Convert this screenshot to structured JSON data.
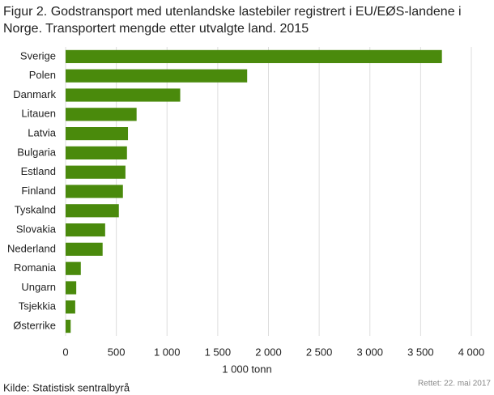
{
  "chart_data": {
    "type": "hbar",
    "title": "Figur 2. Godstransport med utenlandske lastebiler registrert i EU/EØS-landene i Norge. Transportert mengde etter utvalgte land. 2015",
    "categories": [
      "Sverige",
      "Polen",
      "Danmark",
      "Litauen",
      "Latvia",
      "Bulgaria",
      "Estland",
      "Finland",
      "Tyskalnd",
      "Slovakia",
      "Nederland",
      "Romania",
      "Ungarn",
      "Tsjekkia",
      "Østerrike"
    ],
    "values": [
      3710,
      1790,
      1130,
      700,
      615,
      605,
      590,
      565,
      525,
      390,
      365,
      150,
      105,
      95,
      50
    ],
    "color": "#4a8a0c",
    "xlabel": "1 000 tonn",
    "xlim": [
      0,
      4000
    ],
    "xticks": [
      0,
      500,
      {
        "value": 1000,
        "label": "1 000"
      },
      {
        "value": 1500,
        "label": "1 500"
      },
      {
        "value": 2000,
        "label": "2 000"
      },
      {
        "value": 2500,
        "label": "2 500"
      },
      {
        "value": 3000,
        "label": "3 000"
      },
      {
        "value": 3500,
        "label": "3 500"
      },
      {
        "value": 4000,
        "label": "4 000"
      }
    ],
    "grid": true,
    "source": "Kilde: Statistisk sentralbyrå",
    "note": "Rettet: 22. mai 2017"
  }
}
